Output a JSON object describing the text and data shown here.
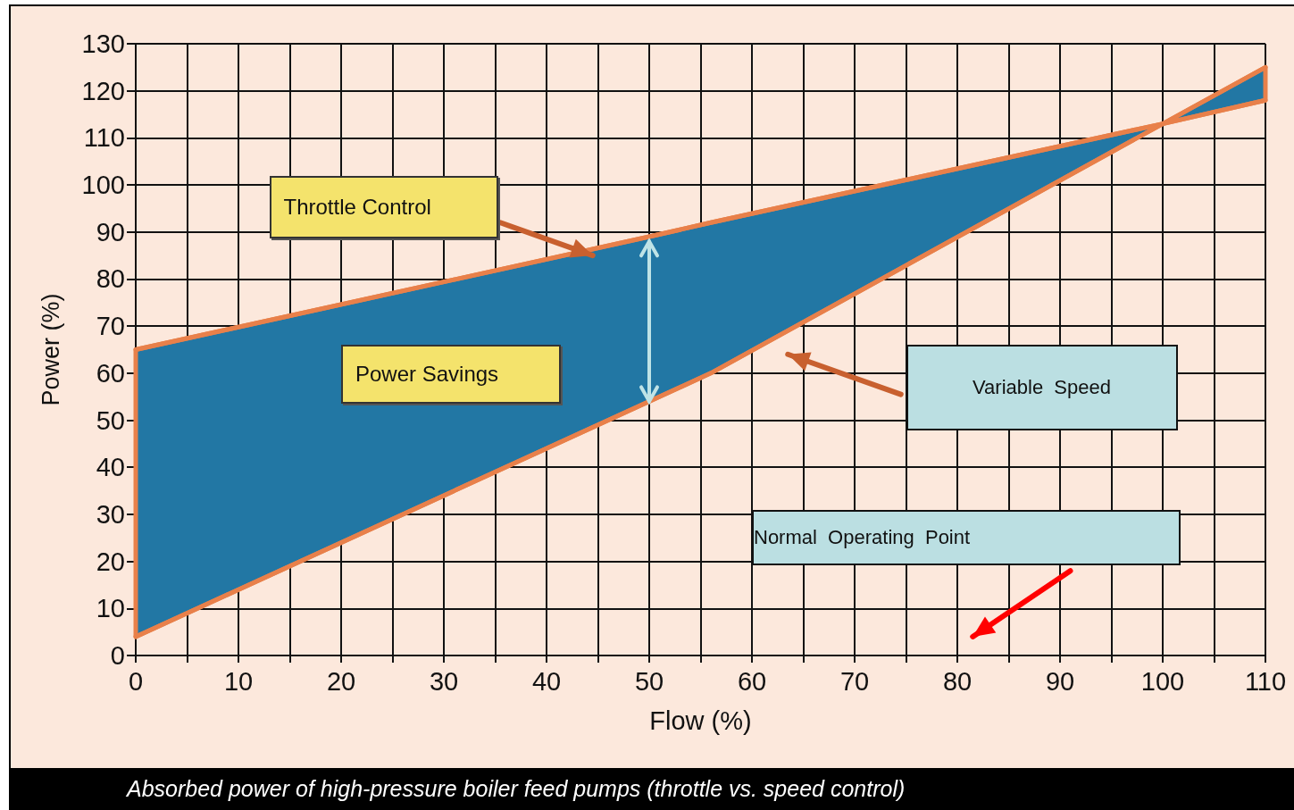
{
  "chart_data": {
    "type": "line",
    "xlabel": "Flow (%)",
    "ylabel": "Power (%)",
    "series": [
      {
        "color": "#e8804a",
        "x": [
          0,
          50,
          56,
          100,
          110
        ],
        "values": [
          65,
          89,
          92,
          113,
          118
        ],
        "lower": [
          4,
          54,
          60,
          113,
          125
        ],
        "upper": [
          65,
          89,
          92,
          113,
          118
        ]
      },
      {
        "color": "#e8804a",
        "x": [
          0,
          56,
          100,
          110
        ],
        "values": [
          4,
          60,
          113,
          125
        ]
      }
    ],
    "xlim": [
      0,
      110
    ],
    "xticks": [
      0,
      {
        "value": 5,
        "label": null
      },
      10,
      {
        "value": 15,
        "label": null
      },
      20,
      {
        "value": 25,
        "label": null
      },
      30,
      {
        "value": 35,
        "label": null
      },
      40,
      {
        "value": 45,
        "label": null
      },
      50,
      {
        "value": 55,
        "label": null
      },
      60,
      {
        "value": 65,
        "label": null
      },
      70,
      {
        "value": 75,
        "label": null
      },
      80,
      {
        "value": 85,
        "label": null
      },
      90,
      {
        "value": 95,
        "label": null
      },
      100,
      {
        "value": 105,
        "label": null
      },
      110
    ],
    "ylim": [
      0,
      130
    ],
    "yticks": [
      0,
      10,
      20,
      30,
      40,
      50,
      60,
      70,
      80,
      90,
      100,
      110,
      120,
      130
    ],
    "grid": true,
    "marker": "none",
    "annotations": [
      "Throttle Control",
      "Power Savings",
      "Variable  Speed",
      "Normal  Operating  Point",
      "Absorbed power of high-pressure boiler feed pumps (throttle vs. speed control)"
    ]
  }
}
